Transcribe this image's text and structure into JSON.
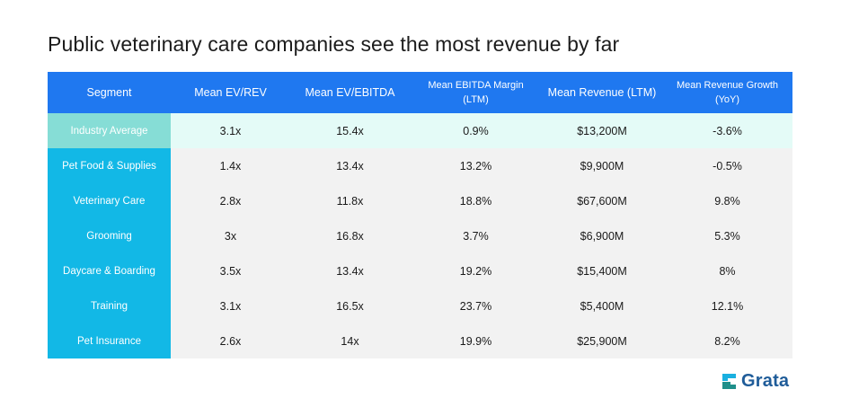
{
  "title": "Public veterinary care companies see the most revenue by far",
  "headers": [
    "Segment",
    "Mean EV/REV",
    "Mean EV/EBITDA",
    "Mean EBITDA Margin (LTM)",
    "Mean Revenue (LTM)",
    "Mean Revenue Growth (YoY)"
  ],
  "rows": [
    {
      "segment": "Industry Average",
      "ev_rev": "3.1x",
      "ev_ebitda": "15.4x",
      "margin": "0.9%",
      "revenue": "$13,200M",
      "growth": "-3.6%"
    },
    {
      "segment": "Pet Food & Supplies",
      "ev_rev": "1.4x",
      "ev_ebitda": "13.4x",
      "margin": "13.2%",
      "revenue": "$9,900M",
      "growth": "-0.5%"
    },
    {
      "segment": "Veterinary Care",
      "ev_rev": "2.8x",
      "ev_ebitda": "11.8x",
      "margin": "18.8%",
      "revenue": "$67,600M",
      "growth": "9.8%"
    },
    {
      "segment": "Grooming",
      "ev_rev": "3x",
      "ev_ebitda": "16.8x",
      "margin": "3.7%",
      "revenue": "$6,900M",
      "growth": "5.3%"
    },
    {
      "segment": "Daycare & Boarding",
      "ev_rev": "3.5x",
      "ev_ebitda": "13.4x",
      "margin": "19.2%",
      "revenue": "$15,400M",
      "growth": "8%"
    },
    {
      "segment": "Training",
      "ev_rev": "3.1x",
      "ev_ebitda": "16.5x",
      "margin": "23.7%",
      "revenue": "$5,400M",
      "growth": "12.1%"
    },
    {
      "segment": "Pet Insurance",
      "ev_rev": "2.6x",
      "ev_ebitda": "14x",
      "margin": "19.9%",
      "revenue": "$25,900M",
      "growth": "8.2%"
    }
  ],
  "logo": {
    "text": "Grata",
    "icon": "grata-logo-icon"
  },
  "colors": {
    "header": "#1f78f0",
    "segment": "#12b8e6",
    "average_segment": "#86ddd6",
    "average_row": "#e4fbf7",
    "row": "#f2f2f2",
    "logo": "#1f5c99"
  }
}
